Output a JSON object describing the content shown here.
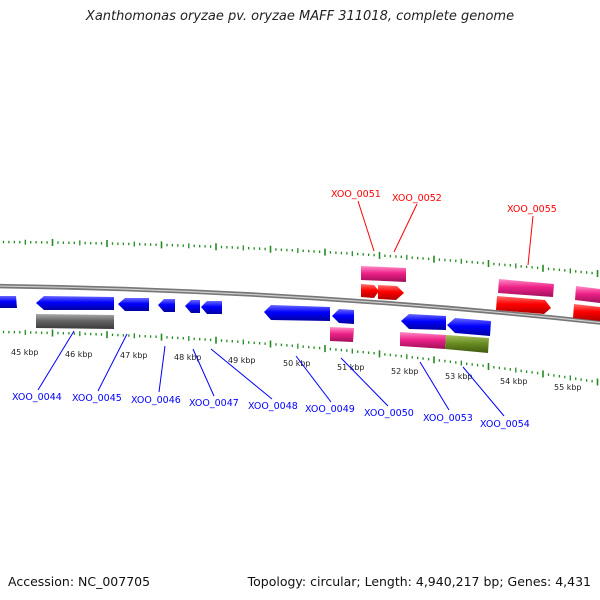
{
  "title": "Xanthomonas oryzae pv. oryzae MAFF 311018, complete genome",
  "footer": {
    "accession": "Accession: NC_007705",
    "topology": "Topology: circular; Length: 4,940,217 bp; Genes: 4,431"
  },
  "scale_ticks": [
    "45 kbp",
    "46 kbp",
    "47 kbp",
    "48 kbp",
    "49 kbp",
    "50 kbp",
    "51 kbp",
    "52 kbp",
    "53 kbp",
    "54 kbp",
    "55 kbp"
  ],
  "genes_top": [
    "XOO_0051",
    "XOO_0052",
    "XOO_0055"
  ],
  "genes_bottom": [
    "XOO_0044",
    "XOO_0045",
    "XOO_0046",
    "XOO_0047",
    "XOO_0048",
    "XOO_0049",
    "XOO_0050",
    "XOO_0053",
    "XOO_0054"
  ],
  "colors": {
    "forward_gene": "#ff0000",
    "reverse_gene": "#0000ff",
    "rna_magenta": "#ee2288",
    "other_gray": "#666666",
    "other_olive": "#6b8e23",
    "ticks": "#228b22",
    "backbone": "#888888"
  }
}
